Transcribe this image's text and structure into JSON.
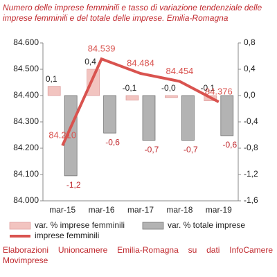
{
  "chart_data": {
    "type": "bar",
    "title": "Numero delle imprese femminili e tasso di variazione tendenziale delle imprese femminili e del totale delle imprese. Emilia-Romagna",
    "source": "Elaborazioni Unioncamere Emilia-Romagna su dati InfoCamere Movimprese",
    "categories": [
      "mar-15",
      "mar-16",
      "mar-17",
      "mar-18",
      "mar-19"
    ],
    "ylim": [
      84000,
      84600
    ],
    "yticks": [
      {
        "value": 84000,
        "label": "84.000"
      },
      {
        "value": 84100,
        "label": "84.100"
      },
      {
        "value": 84200,
        "label": "84.200"
      },
      {
        "value": 84300,
        "label": "84.300"
      },
      {
        "value": 84400,
        "label": "84.400"
      },
      {
        "value": 84500,
        "label": "84.500"
      },
      {
        "value": 84600,
        "label": "84.600"
      }
    ],
    "y2lim": [
      -1.6,
      0.8
    ],
    "y2ticks": [
      {
        "value": -1.6,
        "label": "-1,6"
      },
      {
        "value": -1.2,
        "label": "-1,2"
      },
      {
        "value": -0.8,
        "label": "-0,8"
      },
      {
        "value": -0.4,
        "label": "-0,4"
      },
      {
        "value": 0,
        "label": "0,0"
      },
      {
        "value": 0.4,
        "label": "0,4"
      },
      {
        "value": 0.8,
        "label": "0,8"
      }
    ],
    "series": [
      {
        "name": "var. % imprese femminili",
        "type": "bar",
        "axis": "y2",
        "color": "#f2c4c0",
        "values": [
          0.14,
          0.4,
          -0.07,
          -0.03,
          -0.08
        ],
        "value_labels": [
          "0,1",
          "0,4",
          "-0,1",
          "-0,0",
          "-0,1"
        ]
      },
      {
        "name": "var. % totale imprese",
        "type": "bar",
        "axis": "y2",
        "color": "#b3b3b3",
        "values": [
          -1.22,
          -0.57,
          -0.68,
          -0.68,
          -0.61
        ],
        "value_labels": [
          "-1,2",
          "-0,6",
          "-0,7",
          "-0,7",
          "-0,6"
        ]
      },
      {
        "name": "imprese femminili",
        "type": "line",
        "color": "#d9534f",
        "values": [
          84210,
          84539,
          84484,
          84454,
          84376
        ],
        "value_labels": [
          "84.210",
          "84.539",
          "84.484",
          "84.454",
          "84.376"
        ]
      }
    ]
  }
}
